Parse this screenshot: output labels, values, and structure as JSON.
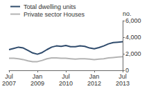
{
  "chart_data": {
    "type": "line",
    "categories": [
      "Jul 2007",
      null,
      null,
      null,
      null,
      null,
      "Jan 2009",
      null,
      null,
      null,
      null,
      null,
      "Jul 2010",
      null,
      null,
      null,
      null,
      null,
      "Jan 2012",
      null,
      null,
      null,
      null,
      null,
      "Jul 2013"
    ],
    "series": [
      {
        "name": "Total dwelling units",
        "color": "#2e4a6b",
        "values": [
          2500,
          2650,
          2800,
          2700,
          2400,
          2100,
          1950,
          2150,
          2500,
          2800,
          2950,
          2900,
          3000,
          2850,
          2850,
          2950,
          2900,
          2700,
          2600,
          2750,
          2950,
          3200,
          3350,
          3400,
          3450
        ]
      },
      {
        "name": "Private sector Houses",
        "color": "#b3b3b3",
        "values": [
          1450,
          1450,
          1400,
          1300,
          1150,
          1050,
          1050,
          1200,
          1400,
          1500,
          1500,
          1450,
          1450,
          1400,
          1350,
          1400,
          1400,
          1350,
          1300,
          1350,
          1400,
          1500,
          1550,
          1600,
          1650
        ]
      }
    ],
    "y_label": "no.",
    "ylim": [
      0,
      6000
    ],
    "yticks": [
      0,
      2000,
      4000,
      6000
    ],
    "grid": false,
    "legend": "top-left"
  }
}
